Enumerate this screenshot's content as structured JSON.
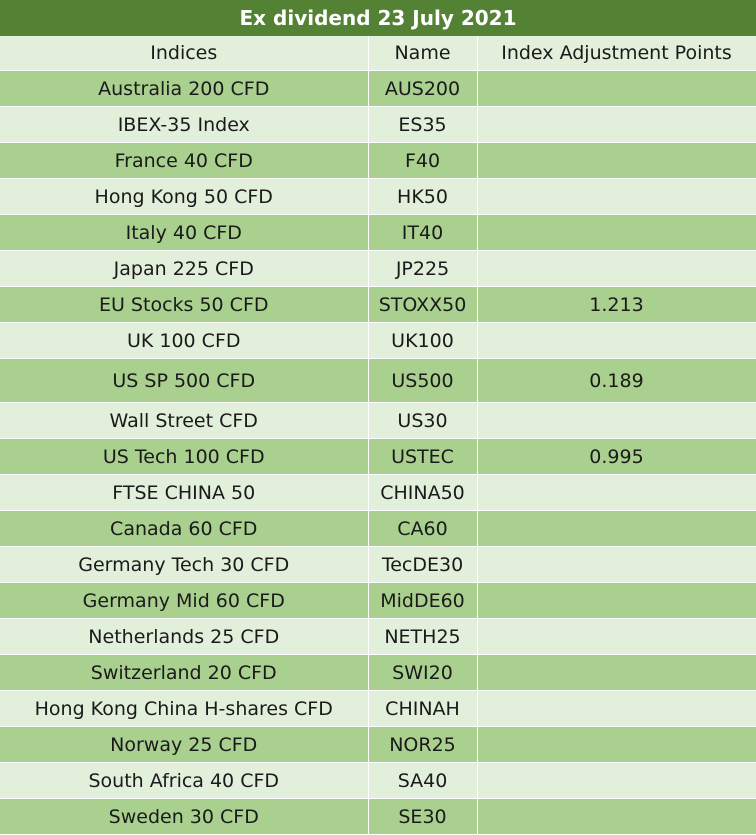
{
  "title": "Ex dividend 23 July 2021",
  "headers": [
    "Indices",
    "Name",
    "Index Adjustment Points"
  ],
  "rows": [
    {
      "index": "Australia 200 CFD",
      "name": "AUS200",
      "points": ""
    },
    {
      "index": "IBEX-35 Index",
      "name": "ES35",
      "points": ""
    },
    {
      "index": "France 40 CFD",
      "name": "F40",
      "points": ""
    },
    {
      "index": "Hong Kong 50 CFD",
      "name": "HK50",
      "points": ""
    },
    {
      "index": "Italy 40 CFD",
      "name": "IT40",
      "points": ""
    },
    {
      "index": "Japan 225 CFD",
      "name": "JP225",
      "points": ""
    },
    {
      "index": "EU Stocks 50 CFD",
      "name": "STOXX50",
      "points": "1.213"
    },
    {
      "index": "UK 100 CFD",
      "name": "UK100",
      "points": ""
    },
    {
      "index": "US SP 500 CFD",
      "name": "US500",
      "points": "0.189"
    },
    {
      "index": "Wall Street CFD",
      "name": "US30",
      "points": ""
    },
    {
      "index": "US Tech 100 CFD",
      "name": "USTEC",
      "points": "0.995"
    },
    {
      "index": "FTSE CHINA 50",
      "name": "CHINA50",
      "points": ""
    },
    {
      "index": "Canada 60 CFD",
      "name": "CA60",
      "points": ""
    },
    {
      "index": "Germany Tech 30 CFD",
      "name": "TecDE30",
      "points": ""
    },
    {
      "index": "Germany Mid 60 CFD",
      "name": "MidDE60",
      "points": ""
    },
    {
      "index": "Netherlands 25 CFD",
      "name": "NETH25",
      "points": ""
    },
    {
      "index": "Switzerland 20 CFD",
      "name": "SWI20",
      "points": ""
    },
    {
      "index": "Hong Kong China H-shares CFD",
      "name": "CHINAH",
      "points": ""
    },
    {
      "index": "Norway 25 CFD",
      "name": "NOR25",
      "points": ""
    },
    {
      "index": "South Africa 40 CFD",
      "name": "SA40",
      "points": ""
    },
    {
      "index": "Sweden 30 CFD",
      "name": "SE30",
      "points": ""
    }
  ],
  "colors": {
    "title_bg": "#548235",
    "row_light": "#e2efda",
    "row_dark": "#a9d08e"
  }
}
